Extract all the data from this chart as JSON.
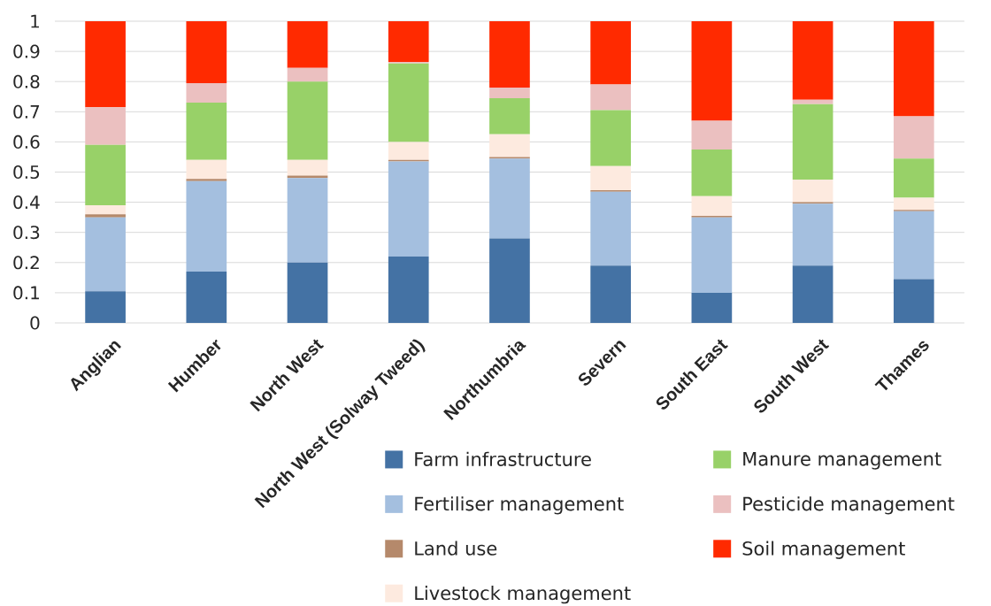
{
  "chart_data": {
    "type": "bar",
    "stacked": true,
    "categories": [
      "Anglian",
      "Humber",
      "North West",
      "North West (Solway Tweed)",
      "Northumbria",
      "Severn",
      "South East",
      "South West",
      "Thames"
    ],
    "series": [
      {
        "name": "Farm infrastructure",
        "color": "#4472a4",
        "values": [
          0.105,
          0.17,
          0.2,
          0.22,
          0.28,
          0.19,
          0.1,
          0.19,
          0.145
        ]
      },
      {
        "name": "Fertiliser management",
        "color": "#a4bfdf",
        "values": [
          0.245,
          0.3,
          0.28,
          0.315,
          0.265,
          0.245,
          0.25,
          0.205,
          0.225
        ]
      },
      {
        "name": "Land use",
        "color": "#b5896b",
        "values": [
          0.01,
          0.007,
          0.008,
          0.005,
          0.005,
          0.005,
          0.005,
          0.005,
          0.005
        ]
      },
      {
        "name": "Livestock management",
        "color": "#fdeadf",
        "values": [
          0.03,
          0.063,
          0.052,
          0.06,
          0.075,
          0.08,
          0.065,
          0.075,
          0.04
        ]
      },
      {
        "name": "Manure management",
        "color": "#98d168",
        "values": [
          0.2,
          0.19,
          0.26,
          0.26,
          0.12,
          0.185,
          0.155,
          0.25,
          0.13
        ]
      },
      {
        "name": "Pesticide management",
        "color": "#ebc0c0",
        "values": [
          0.125,
          0.065,
          0.045,
          0.005,
          0.035,
          0.085,
          0.095,
          0.015,
          0.14
        ]
      },
      {
        "name": "Soil management",
        "color": "#ff2a00",
        "values": [
          0.285,
          0.205,
          0.155,
          0.135,
          0.22,
          0.21,
          0.33,
          0.26,
          0.315
        ]
      }
    ],
    "ylim": [
      0,
      1
    ],
    "yticks": [
      0,
      0.1,
      0.2,
      0.3,
      0.4,
      0.5,
      0.6,
      0.7,
      0.8,
      0.9,
      1
    ],
    "grid": "y",
    "legend": "bottom right"
  }
}
